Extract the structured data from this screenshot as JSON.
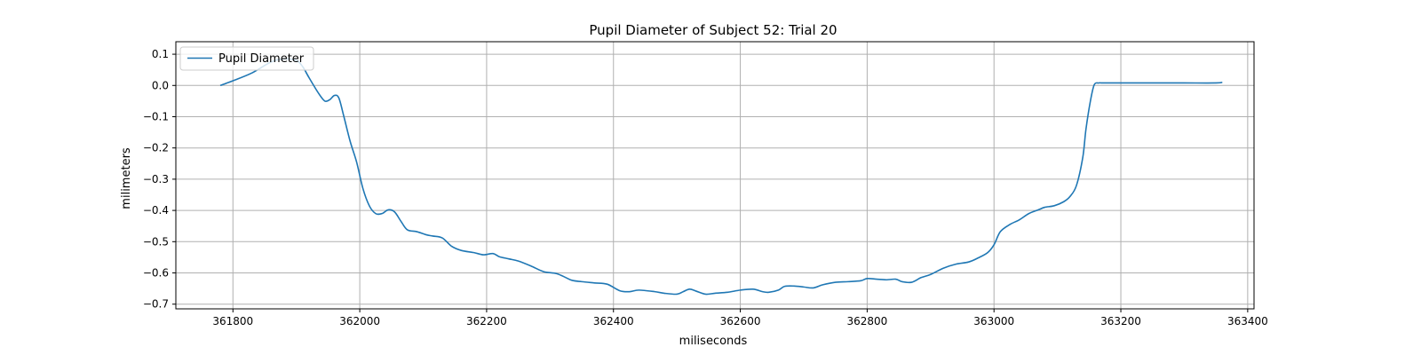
{
  "chart_data": {
    "type": "line",
    "title": "Pupil Diameter of Subject 52: Trial 20",
    "xlabel": "miliseconds",
    "ylabel": "milimeters",
    "xlim": [
      361710,
      363410
    ],
    "ylim": [
      -0.715,
      0.14
    ],
    "x_ticks": [
      361800,
      362000,
      362200,
      362400,
      362600,
      362800,
      363000,
      363200,
      363400
    ],
    "x_tick_labels": [
      "361800",
      "362000",
      "362200",
      "362400",
      "362600",
      "362800",
      "363000",
      "363200",
      "363400"
    ],
    "y_ticks": [
      0.1,
      0.0,
      -0.1,
      -0.2,
      -0.3,
      -0.4,
      -0.5,
      -0.6,
      -0.7
    ],
    "y_tick_labels": [
      "0.1",
      "0.0",
      "−0.1",
      "−0.2",
      "−0.3",
      "−0.4",
      "−0.5",
      "−0.6",
      "−0.7"
    ],
    "grid": true,
    "legend_position": "top-left",
    "series": [
      {
        "name": "Pupil Diameter",
        "color": "#1f77b4",
        "x": [
          361780,
          361800,
          361830,
          361860,
          361880,
          361900,
          361910,
          361920,
          361935,
          361945,
          361953,
          361960,
          361967,
          361975,
          361985,
          361995,
          362005,
          362015,
          362025,
          362035,
          362045,
          362055,
          362065,
          362075,
          362090,
          362105,
          362115,
          362130,
          362145,
          362160,
          362180,
          362195,
          362210,
          362220,
          362235,
          362250,
          362270,
          362290,
          362310,
          362325,
          362335,
          362350,
          362370,
          362390,
          362410,
          362425,
          362440,
          362465,
          362480,
          362500,
          362510,
          362520,
          362530,
          362545,
          362560,
          362580,
          362600,
          362620,
          362635,
          362645,
          362660,
          362670,
          362685,
          362700,
          362715,
          362730,
          362750,
          362770,
          362790,
          362800,
          362815,
          362830,
          362845,
          362855,
          362870,
          362885,
          362900,
          362920,
          362940,
          362960,
          362975,
          362990,
          363000,
          363010,
          363025,
          363040,
          363055,
          363070,
          363080,
          363095,
          363110,
          363120,
          363130,
          363140,
          363145,
          363152,
          363158,
          363165,
          363170,
          363180,
          363200,
          363250,
          363300,
          363350,
          363360
        ],
        "y": [
          0.0,
          0.015,
          0.04,
          0.075,
          0.085,
          0.08,
          0.06,
          0.025,
          -0.025,
          -0.05,
          -0.045,
          -0.032,
          -0.04,
          -0.1,
          -0.18,
          -0.245,
          -0.33,
          -0.385,
          -0.41,
          -0.41,
          -0.398,
          -0.405,
          -0.435,
          -0.462,
          -0.468,
          -0.478,
          -0.482,
          -0.488,
          -0.515,
          -0.528,
          -0.535,
          -0.542,
          -0.538,
          -0.548,
          -0.555,
          -0.562,
          -0.578,
          -0.596,
          -0.602,
          -0.615,
          -0.624,
          -0.628,
          -0.632,
          -0.636,
          -0.657,
          -0.66,
          -0.655,
          -0.66,
          -0.665,
          -0.668,
          -0.66,
          -0.652,
          -0.658,
          -0.668,
          -0.665,
          -0.662,
          -0.655,
          -0.652,
          -0.66,
          -0.662,
          -0.655,
          -0.643,
          -0.642,
          -0.645,
          -0.648,
          -0.638,
          -0.63,
          -0.628,
          -0.625,
          -0.618,
          -0.62,
          -0.622,
          -0.62,
          -0.628,
          -0.63,
          -0.615,
          -0.605,
          -0.585,
          -0.572,
          -0.565,
          -0.552,
          -0.535,
          -0.51,
          -0.468,
          -0.445,
          -0.43,
          -0.41,
          -0.398,
          -0.39,
          -0.385,
          -0.372,
          -0.355,
          -0.32,
          -0.23,
          -0.14,
          -0.05,
          0.002,
          0.008,
          0.008,
          0.008,
          0.008,
          0.008,
          0.008,
          0.008,
          0.01
        ]
      }
    ]
  }
}
